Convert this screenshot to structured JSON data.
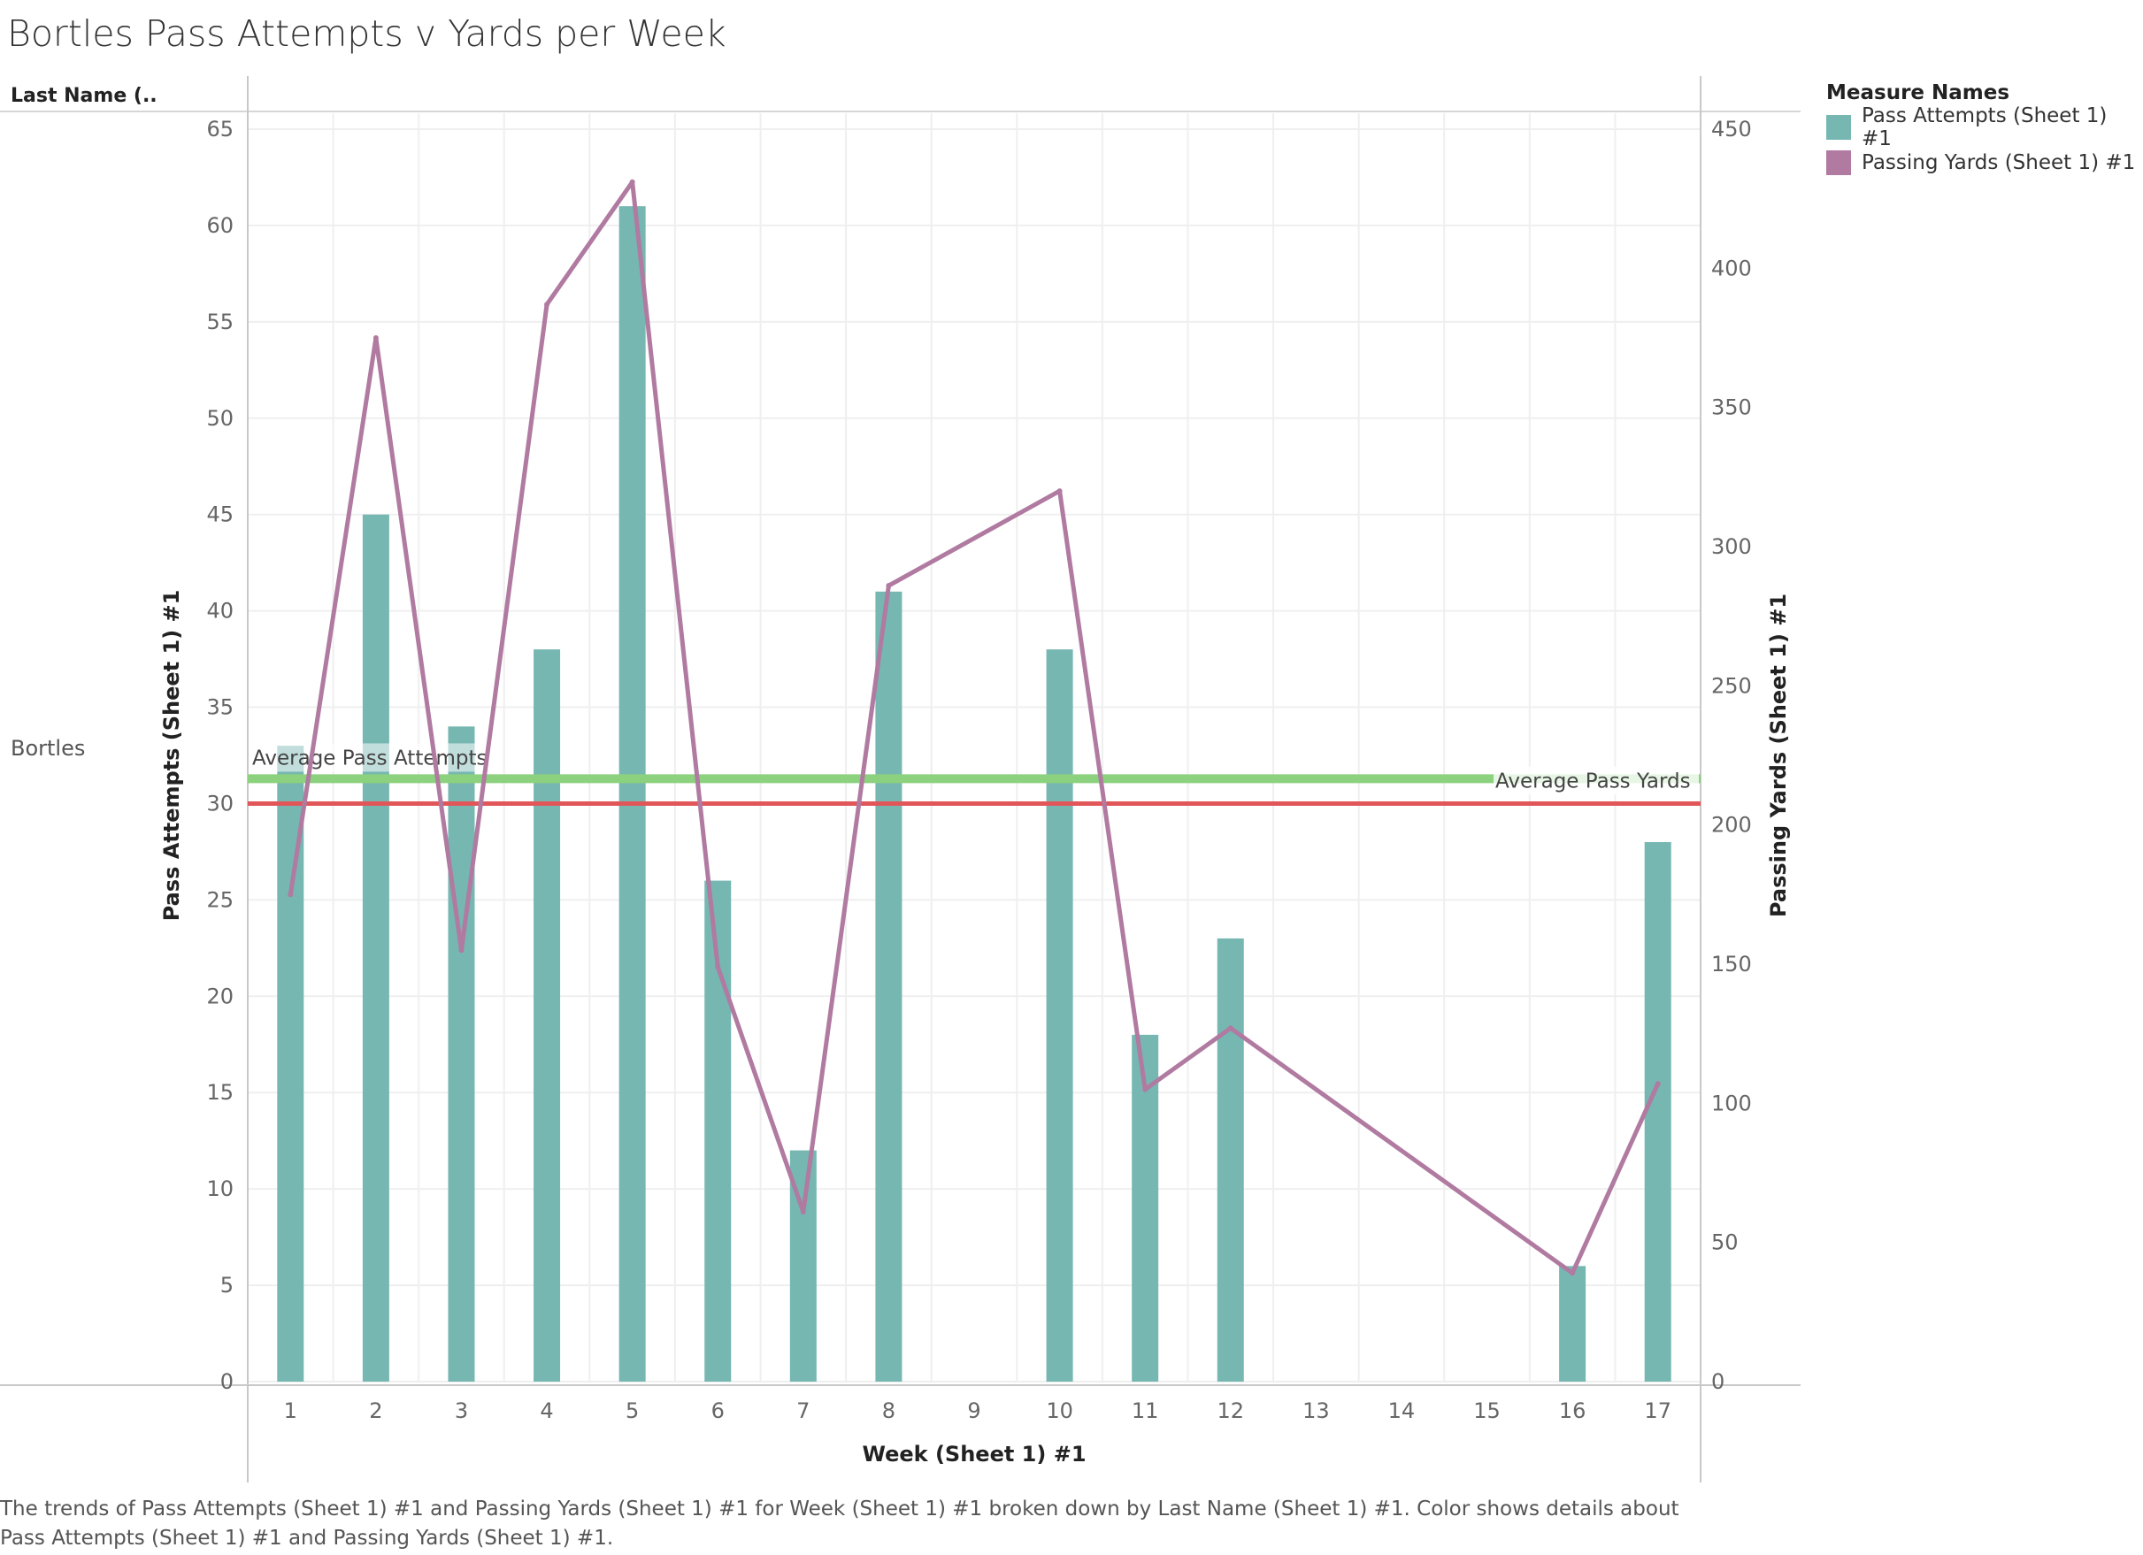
{
  "title": "Bortles Pass Attempts v Yards per Week",
  "row_header": "Last Name (..",
  "row_label": "Bortles",
  "legend": {
    "title": "Measure Names",
    "items": [
      {
        "label": "Pass Attempts (Sheet 1) #1",
        "color": "#76b7b2"
      },
      {
        "label": "Passing Yards (Sheet 1) #1",
        "color": "#b07aa1"
      }
    ]
  },
  "caption": "The trends of Pass Attempts (Sheet 1) #1 and Passing Yards (Sheet 1) #1 for Week (Sheet 1) #1 broken down by Last Name (Sheet 1) #1.  Color shows details about Pass Attempts (Sheet 1) #1 and Passing Yards (Sheet 1) #1.",
  "chart_data": {
    "type": "bar",
    "categories": [
      "1",
      "2",
      "3",
      "4",
      "5",
      "6",
      "7",
      "8",
      "9",
      "10",
      "11",
      "12",
      "13",
      "14",
      "15",
      "16",
      "17"
    ],
    "xlabel": "Week (Sheet 1) #1",
    "ylabel": "Pass Attempts (Sheet 1) #1",
    "y2label": "Passing Yards (Sheet 1) #1",
    "ylim": [
      0,
      65
    ],
    "y2lim": [
      0,
      450
    ],
    "yticks": [
      0,
      5,
      10,
      15,
      20,
      25,
      30,
      35,
      40,
      45,
      50,
      55,
      60,
      65
    ],
    "y2ticks": [
      0,
      50,
      100,
      150,
      200,
      250,
      300,
      350,
      400,
      450
    ],
    "series": [
      {
        "name": "Pass Attempts (Sheet 1) #1",
        "type": "bar",
        "axis": "left",
        "color": "#76b7b2",
        "values": [
          33,
          45,
          34,
          38,
          61,
          26,
          12,
          41,
          null,
          38,
          18,
          23,
          null,
          null,
          null,
          6,
          28
        ]
      },
      {
        "name": "Passing Yards (Sheet 1) #1",
        "type": "line",
        "axis": "right",
        "color": "#b07aa1",
        "values": [
          175,
          375,
          155,
          387,
          431,
          149,
          61,
          286,
          null,
          320,
          105,
          127,
          null,
          null,
          null,
          39,
          107
        ]
      }
    ],
    "reference_lines": [
      {
        "label": "Average Pass Attempts",
        "value": 30,
        "axis": "left",
        "color": "#e15759"
      },
      {
        "label": "Average Pass Yards",
        "value": 216.6,
        "axis": "right",
        "color": "#8cd17d"
      }
    ],
    "grid": true
  }
}
